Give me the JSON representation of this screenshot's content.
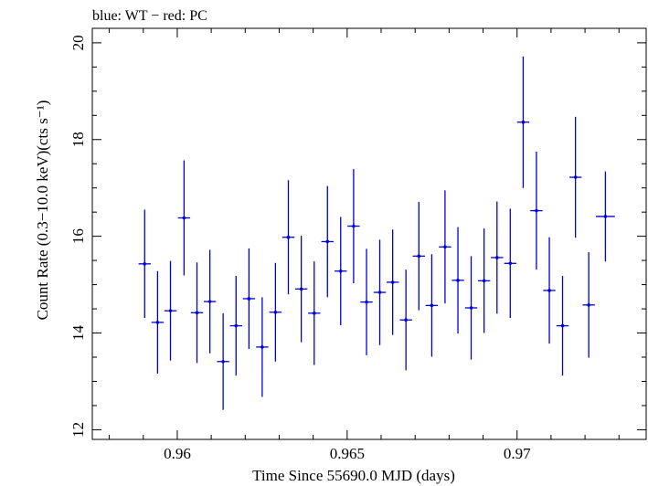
{
  "chart_data": {
    "type": "scatter",
    "title": "blue: WT − red: PC",
    "xlabel": "Time Since 55690.0 MJD (days)",
    "ylabel": "Count Rate (0.3−10.0 keV)(cts s⁻¹)",
    "xlim": [
      0.9575,
      0.9738
    ],
    "ylim": [
      11.8,
      20.3
    ],
    "x_ticks": [
      0.96,
      0.965,
      0.97
    ],
    "x_tick_labels": [
      "0.96",
      "0.965",
      "0.97"
    ],
    "y_ticks": [
      12,
      14,
      16,
      18,
      20
    ],
    "y_tick_labels": [
      "12",
      "14",
      "16",
      "18",
      "20"
    ],
    "grid": false,
    "legend": "none",
    "series": [
      {
        "color": "#0000dd",
        "points": [
          {
            "x": 0.95904,
            "xerr": 0.00018,
            "y": 15.43,
            "yerr": 1.12
          },
          {
            "x": 0.95942,
            "xerr": 0.00018,
            "y": 14.22,
            "yerr": 1.06
          },
          {
            "x": 0.9598,
            "xerr": 0.00018,
            "y": 14.46,
            "yerr": 1.03
          },
          {
            "x": 0.9602,
            "xerr": 0.00018,
            "y": 16.38,
            "yerr": 1.19
          },
          {
            "x": 0.96058,
            "xerr": 0.00018,
            "y": 14.42,
            "yerr": 1.04
          },
          {
            "x": 0.96096,
            "xerr": 0.00018,
            "y": 14.65,
            "yerr": 1.07
          },
          {
            "x": 0.96135,
            "xerr": 0.00018,
            "y": 13.41,
            "yerr": 1.0
          },
          {
            "x": 0.96173,
            "xerr": 0.00018,
            "y": 14.15,
            "yerr": 1.03
          },
          {
            "x": 0.96211,
            "xerr": 0.00018,
            "y": 14.71,
            "yerr": 1.04
          },
          {
            "x": 0.9625,
            "xerr": 0.00018,
            "y": 13.71,
            "yerr": 1.03
          },
          {
            "x": 0.96289,
            "xerr": 0.00018,
            "y": 14.43,
            "yerr": 1.02
          },
          {
            "x": 0.96327,
            "xerr": 0.00018,
            "y": 15.98,
            "yerr": 1.18
          },
          {
            "x": 0.96365,
            "xerr": 0.00018,
            "y": 14.91,
            "yerr": 1.1
          },
          {
            "x": 0.96403,
            "xerr": 0.00018,
            "y": 14.41,
            "yerr": 1.07
          },
          {
            "x": 0.96442,
            "xerr": 0.00018,
            "y": 15.89,
            "yerr": 1.15
          },
          {
            "x": 0.96481,
            "xerr": 0.00018,
            "y": 15.28,
            "yerr": 1.12
          },
          {
            "x": 0.96519,
            "xerr": 0.00018,
            "y": 16.21,
            "yerr": 1.18
          },
          {
            "x": 0.96557,
            "xerr": 0.00018,
            "y": 14.64,
            "yerr": 1.1
          },
          {
            "x": 0.96596,
            "xerr": 0.00018,
            "y": 14.84,
            "yerr": 1.09
          },
          {
            "x": 0.96634,
            "xerr": 0.00018,
            "y": 15.05,
            "yerr": 1.09
          },
          {
            "x": 0.96673,
            "xerr": 0.00018,
            "y": 14.27,
            "yerr": 1.04
          },
          {
            "x": 0.96711,
            "xerr": 0.00018,
            "y": 15.59,
            "yerr": 1.12
          },
          {
            "x": 0.96749,
            "xerr": 0.00018,
            "y": 14.57,
            "yerr": 1.06
          },
          {
            "x": 0.96788,
            "xerr": 0.00018,
            "y": 15.78,
            "yerr": 1.17
          },
          {
            "x": 0.96826,
            "xerr": 0.00018,
            "y": 15.09,
            "yerr": 1.1
          },
          {
            "x": 0.96865,
            "xerr": 0.00018,
            "y": 14.52,
            "yerr": 1.07
          },
          {
            "x": 0.96903,
            "xerr": 0.00018,
            "y": 15.08,
            "yerr": 1.08
          },
          {
            "x": 0.96941,
            "xerr": 0.00018,
            "y": 15.56,
            "yerr": 1.16
          },
          {
            "x": 0.9698,
            "xerr": 0.00018,
            "y": 15.44,
            "yerr": 1.13
          },
          {
            "x": 0.97018,
            "xerr": 0.00018,
            "y": 18.36,
            "yerr": 1.36
          },
          {
            "x": 0.97057,
            "xerr": 0.00018,
            "y": 16.53,
            "yerr": 1.22
          },
          {
            "x": 0.97095,
            "xerr": 0.00018,
            "y": 14.88,
            "yerr": 1.1
          },
          {
            "x": 0.97134,
            "xerr": 0.00018,
            "y": 14.15,
            "yerr": 1.03
          },
          {
            "x": 0.97172,
            "xerr": 0.00018,
            "y": 17.22,
            "yerr": 1.25
          },
          {
            "x": 0.97211,
            "xerr": 0.00018,
            "y": 14.58,
            "yerr": 1.09
          },
          {
            "x": 0.9726,
            "xerr": 0.00028,
            "y": 16.41,
            "yerr": 0.93
          }
        ]
      }
    ]
  }
}
